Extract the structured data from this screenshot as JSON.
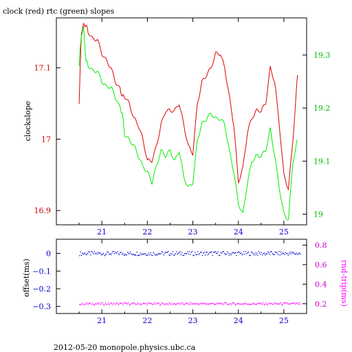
{
  "title": "clock (red) rtc (green) slopes",
  "footer": "2012-05-20  monopole.physics.ubc.ca",
  "colors": {
    "clock": "#dd0000",
    "rtc": "#00ee00",
    "offset": "#0000cc",
    "roundtrip": "#ff00ff",
    "axis_left_top": "#cc0000",
    "axis_right_top": "#00bb00",
    "axis_bottom": "#0000cc",
    "axis_right_bottom": "#cc00cc"
  },
  "chart_data": [
    {
      "type": "line",
      "title": "clock (red) rtc (green) slopes",
      "ylabel": "clockslope",
      "xlim": [
        20.0,
        25.5
      ],
      "ylim_left": [
        16.88,
        17.17
      ],
      "ylim_right": [
        18.98,
        19.37
      ],
      "x_ticks": [
        21,
        22,
        23,
        24,
        25
      ],
      "y_ticks_left": [
        16.9,
        17,
        17.1
      ],
      "y_tick_labels_left": [
        "16.9",
        "17",
        "17.1"
      ],
      "y_ticks_right": [
        19,
        19.1,
        19.2,
        19.3
      ],
      "y_tick_labels_right": [
        "19",
        "19.1",
        "19.2",
        "19.3"
      ],
      "series": [
        {
          "name": "clock",
          "axis": "left",
          "x": [
            20.5,
            20.55,
            20.6,
            20.65,
            20.7,
            20.8,
            20.9,
            21.0,
            21.1,
            21.2,
            21.3,
            21.4,
            21.45,
            21.5,
            21.6,
            21.7,
            21.8,
            21.9,
            22.0,
            22.1,
            22.2,
            22.3,
            22.4,
            22.5,
            22.6,
            22.7,
            22.8,
            22.9,
            23.0,
            23.1,
            23.2,
            23.3,
            23.4,
            23.5,
            23.6,
            23.7,
            23.8,
            23.9,
            24.0,
            24.1,
            24.2,
            24.3,
            24.4,
            24.5,
            24.6,
            24.7,
            24.8,
            24.9,
            25.0,
            25.1,
            25.2,
            25.3
          ],
          "y": [
            17.05,
            17.15,
            17.16,
            17.16,
            17.15,
            17.14,
            17.14,
            17.12,
            17.11,
            17.1,
            17.08,
            17.07,
            17.06,
            17.06,
            17.05,
            17.03,
            17.02,
            17.0,
            16.97,
            16.97,
            16.99,
            17.02,
            17.04,
            17.04,
            17.04,
            17.05,
            17.02,
            16.99,
            16.98,
            17.05,
            17.08,
            17.09,
            17.1,
            17.12,
            17.12,
            17.1,
            17.06,
            17.02,
            16.94,
            16.96,
            17.01,
            17.03,
            17.04,
            17.04,
            17.05,
            17.1,
            17.08,
            17.02,
            16.95,
            16.93,
            17.0,
            17.09
          ]
        },
        {
          "name": "rtc",
          "axis": "right",
          "x": [
            20.5,
            20.55,
            20.6,
            20.65,
            20.7,
            20.8,
            20.9,
            21.0,
            21.1,
            21.2,
            21.3,
            21.4,
            21.45,
            21.5,
            21.6,
            21.7,
            21.8,
            21.9,
            22.0,
            22.1,
            22.2,
            22.3,
            22.4,
            22.5,
            22.6,
            22.7,
            22.8,
            22.9,
            23.0,
            23.1,
            23.2,
            23.3,
            23.4,
            23.5,
            23.6,
            23.7,
            23.8,
            23.9,
            24.0,
            24.1,
            24.2,
            24.3,
            24.4,
            24.5,
            24.6,
            24.7,
            24.8,
            24.9,
            25.0,
            25.1,
            25.2,
            25.3
          ],
          "y": [
            19.28,
            19.34,
            19.35,
            19.29,
            19.28,
            19.27,
            19.27,
            19.25,
            19.24,
            19.24,
            19.22,
            19.2,
            19.19,
            19.15,
            19.14,
            19.13,
            19.11,
            19.09,
            19.08,
            19.06,
            19.09,
            19.12,
            19.11,
            19.12,
            19.1,
            19.12,
            19.07,
            19.05,
            19.06,
            19.14,
            19.17,
            19.18,
            19.19,
            19.18,
            19.18,
            19.17,
            19.12,
            19.08,
            19.02,
            19.0,
            19.06,
            19.1,
            19.11,
            19.11,
            19.12,
            19.16,
            19.11,
            19.05,
            19.0,
            18.99,
            19.1,
            19.14
          ]
        }
      ]
    },
    {
      "type": "scatter",
      "ylabel": "offset(ms)",
      "ylabel_right": "rnd-trip(ms)",
      "xlim": [
        20.0,
        25.5
      ],
      "ylim_left": [
        -0.34,
        0.08
      ],
      "ylim_right": [
        0.1,
        0.86
      ],
      "x_ticks": [
        21,
        22,
        23,
        24,
        25
      ],
      "y_ticks_left": [
        0,
        -0.1,
        -0.2,
        -0.3
      ],
      "y_tick_labels_left": [
        "0",
        "−0.1",
        "−0.2",
        "−0.3"
      ],
      "y_ticks_right": [
        0.2,
        0.4,
        0.6,
        0.8
      ],
      "y_tick_labels_right": [
        "0.2",
        "0.4",
        "0.6",
        "0.8"
      ],
      "series": [
        {
          "name": "offset",
          "axis": "left",
          "x_range": [
            20.5,
            25.35
          ],
          "level": 0.0,
          "spread": 0.012
        },
        {
          "name": "rnd-trip",
          "axis": "right",
          "x_range": [
            20.5,
            25.35
          ],
          "level": 0.2,
          "spread": 0.012
        }
      ]
    }
  ]
}
